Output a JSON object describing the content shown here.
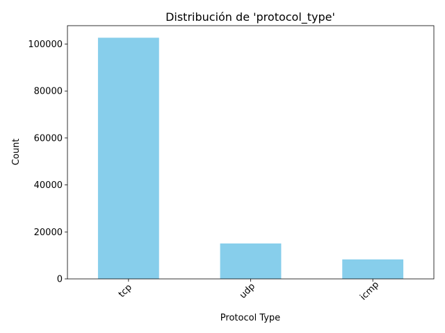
{
  "chart_data": {
    "type": "bar",
    "title": "Distribución de 'protocol_type'",
    "xlabel": "Protocol Type",
    "ylabel": "Count",
    "categories": [
      "tcp",
      "udp",
      "icmp"
    ],
    "values": [
      102689,
      15086,
      8291
    ],
    "ylim": [
      0,
      107823
    ],
    "yticks": [
      0,
      20000,
      40000,
      60000,
      80000,
      100000
    ],
    "x_tick_rotation": 45,
    "bar_color": "#87ceeb",
    "grid": false,
    "legend": "none"
  }
}
